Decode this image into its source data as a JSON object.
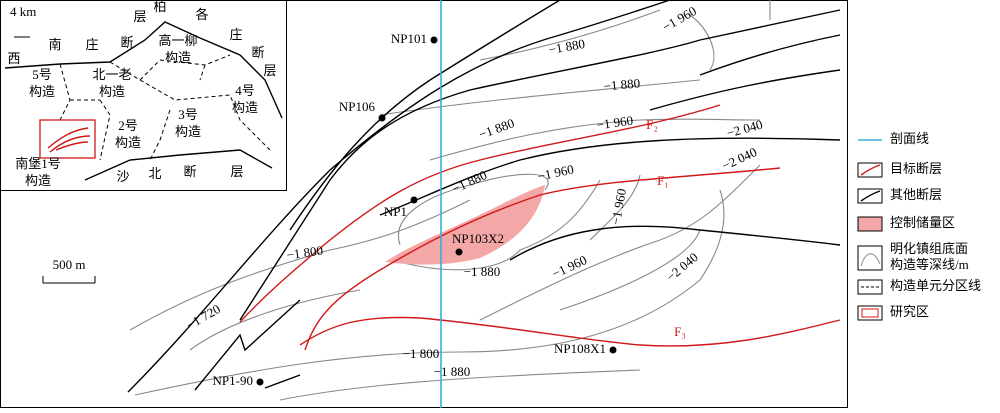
{
  "inset": {
    "scale": "4 km",
    "fault_labels": [
      "西",
      "南",
      "庄",
      "断",
      "层",
      "柏",
      "各",
      "庄",
      "断",
      "层",
      "沙",
      "北",
      "断",
      "层"
    ],
    "units": [
      [
        "高一柳",
        "构造"
      ],
      [
        "北一老",
        "构造"
      ],
      [
        "5号",
        "构造"
      ],
      [
        "4号",
        "构造"
      ],
      [
        "2号",
        "构造"
      ],
      [
        "3号",
        "构造"
      ],
      [
        "南堡1号",
        "构造"
      ]
    ]
  },
  "map": {
    "contour_labels": [
      "−1 960",
      "−1 880",
      "−1 880",
      "−1 880",
      "−1 960",
      "−2 040",
      "−2 040",
      "−1 880",
      "−1 960",
      "−1 960",
      "−1 800",
      "−1 720",
      "−1 880",
      "−1 960",
      "−2 040",
      "−1 800",
      "−1 880"
    ],
    "wells": [
      "NP101",
      "NP106",
      "NP1",
      "NP103X2",
      "NP108X1",
      "NP1-90"
    ],
    "faults": [
      "F₂",
      "F₁",
      "F₃"
    ],
    "scale": "500 m"
  },
  "legend": [
    [
      "剖面线"
    ],
    [
      "目标断层"
    ],
    [
      "其他断层"
    ],
    [
      "控制储量区"
    ],
    [
      "明化镇组底面",
      "构造等深线/m"
    ],
    [
      "构造单元分区线"
    ],
    [
      "研究区"
    ]
  ]
}
